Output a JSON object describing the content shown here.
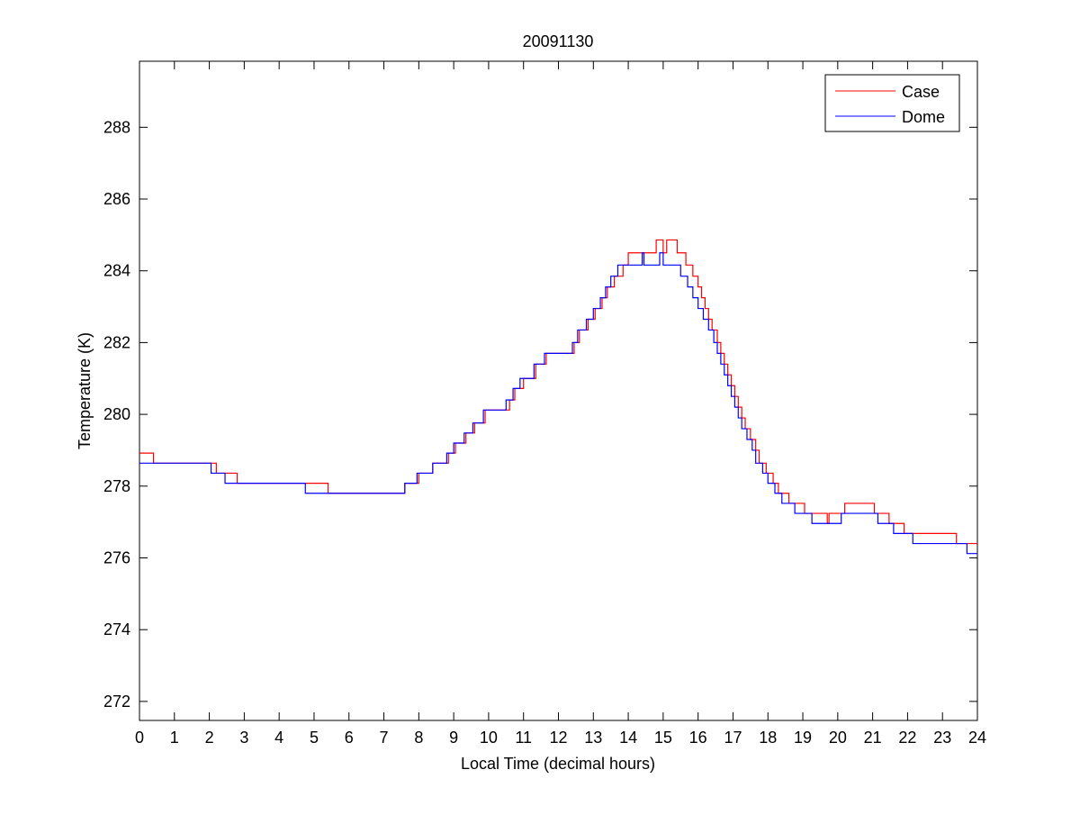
{
  "chart_data": {
    "type": "line",
    "title": "20091130",
    "xlabel": "Local Time (decimal hours)",
    "ylabel": "Temperature (K)",
    "xlim": [
      0,
      24
    ],
    "ylim": [
      271.47,
      289.84
    ],
    "xticks": [
      0,
      1,
      2,
      3,
      4,
      5,
      6,
      7,
      8,
      9,
      10,
      11,
      12,
      13,
      14,
      15,
      16,
      17,
      18,
      19,
      20,
      21,
      22,
      23,
      24
    ],
    "yticks": [
      272,
      274,
      276,
      278,
      280,
      282,
      284,
      286,
      288
    ],
    "grid": false,
    "legend_position": "top-right",
    "step": true,
    "series": [
      {
        "name": "Case",
        "color": "#ff0000",
        "points": [
          [
            0,
            278.92
          ],
          [
            0.4,
            278.64
          ],
          [
            2.2,
            278.36
          ],
          [
            2.8,
            278.08
          ],
          [
            5.4,
            277.8
          ],
          [
            7.6,
            278.08
          ],
          [
            8.0,
            278.36
          ],
          [
            8.4,
            278.64
          ],
          [
            8.85,
            278.92
          ],
          [
            9.05,
            279.2
          ],
          [
            9.35,
            279.48
          ],
          [
            9.6,
            279.76
          ],
          [
            9.9,
            280.12
          ],
          [
            10.6,
            280.4
          ],
          [
            10.75,
            280.72
          ],
          [
            11.0,
            281.0
          ],
          [
            11.35,
            281.4
          ],
          [
            11.65,
            281.7
          ],
          [
            12.45,
            282.0
          ],
          [
            12.6,
            282.35
          ],
          [
            12.85,
            282.65
          ],
          [
            13.05,
            282.95
          ],
          [
            13.25,
            283.25
          ],
          [
            13.4,
            283.55
          ],
          [
            13.6,
            283.85
          ],
          [
            13.85,
            284.16
          ],
          [
            14.0,
            284.5
          ],
          [
            14.8,
            284.86
          ],
          [
            15.0,
            284.5
          ],
          [
            15.1,
            284.86
          ],
          [
            15.4,
            284.5
          ],
          [
            15.65,
            284.16
          ],
          [
            15.85,
            283.85
          ],
          [
            16.0,
            283.55
          ],
          [
            16.1,
            283.25
          ],
          [
            16.2,
            282.95
          ],
          [
            16.3,
            282.65
          ],
          [
            16.4,
            282.35
          ],
          [
            16.55,
            282.0
          ],
          [
            16.65,
            281.7
          ],
          [
            16.75,
            281.4
          ],
          [
            16.85,
            281.1
          ],
          [
            16.95,
            280.8
          ],
          [
            17.05,
            280.5
          ],
          [
            17.15,
            280.2
          ],
          [
            17.25,
            279.9
          ],
          [
            17.35,
            279.6
          ],
          [
            17.5,
            279.3
          ],
          [
            17.65,
            279.0
          ],
          [
            17.75,
            278.64
          ],
          [
            17.95,
            278.36
          ],
          [
            18.15,
            278.08
          ],
          [
            18.3,
            277.8
          ],
          [
            18.6,
            277.52
          ],
          [
            19.05,
            277.24
          ],
          [
            19.7,
            276.96
          ],
          [
            19.75,
            277.24
          ],
          [
            20.2,
            277.52
          ],
          [
            21.05,
            277.24
          ],
          [
            21.47,
            276.96
          ],
          [
            21.9,
            276.68
          ],
          [
            23.4,
            276.4
          ],
          [
            24,
            276.4
          ]
        ]
      },
      {
        "name": "Dome",
        "color": "#0000ff",
        "points": [
          [
            0,
            278.64
          ],
          [
            2.05,
            278.36
          ],
          [
            2.45,
            278.08
          ],
          [
            4.75,
            277.8
          ],
          [
            7.6,
            278.08
          ],
          [
            7.95,
            278.36
          ],
          [
            8.4,
            278.64
          ],
          [
            8.8,
            278.92
          ],
          [
            9.0,
            279.2
          ],
          [
            9.3,
            279.48
          ],
          [
            9.55,
            279.76
          ],
          [
            9.85,
            280.12
          ],
          [
            10.5,
            280.4
          ],
          [
            10.7,
            280.72
          ],
          [
            10.9,
            281.0
          ],
          [
            11.3,
            281.4
          ],
          [
            11.6,
            281.7
          ],
          [
            12.4,
            282.0
          ],
          [
            12.55,
            282.35
          ],
          [
            12.8,
            282.65
          ],
          [
            13.0,
            282.95
          ],
          [
            13.2,
            283.25
          ],
          [
            13.35,
            283.55
          ],
          [
            13.5,
            283.85
          ],
          [
            13.7,
            284.16
          ],
          [
            14.4,
            284.5
          ],
          [
            14.45,
            284.16
          ],
          [
            14.9,
            284.5
          ],
          [
            15.0,
            284.16
          ],
          [
            15.2,
            284.16
          ],
          [
            15.5,
            283.85
          ],
          [
            15.7,
            283.55
          ],
          [
            15.85,
            283.25
          ],
          [
            16.0,
            282.95
          ],
          [
            16.15,
            282.65
          ],
          [
            16.3,
            282.35
          ],
          [
            16.45,
            282.0
          ],
          [
            16.55,
            281.7
          ],
          [
            16.65,
            281.4
          ],
          [
            16.75,
            281.1
          ],
          [
            16.85,
            280.8
          ],
          [
            16.95,
            280.5
          ],
          [
            17.05,
            280.2
          ],
          [
            17.15,
            279.9
          ],
          [
            17.25,
            279.6
          ],
          [
            17.4,
            279.3
          ],
          [
            17.55,
            279.0
          ],
          [
            17.65,
            278.64
          ],
          [
            17.85,
            278.36
          ],
          [
            18.0,
            278.08
          ],
          [
            18.2,
            277.8
          ],
          [
            18.4,
            277.52
          ],
          [
            18.77,
            277.24
          ],
          [
            19.26,
            276.96
          ],
          [
            20.1,
            277.24
          ],
          [
            21.15,
            276.96
          ],
          [
            21.6,
            276.68
          ],
          [
            22.15,
            276.4
          ],
          [
            23.7,
            276.12
          ],
          [
            24,
            276.12
          ]
        ]
      }
    ]
  }
}
